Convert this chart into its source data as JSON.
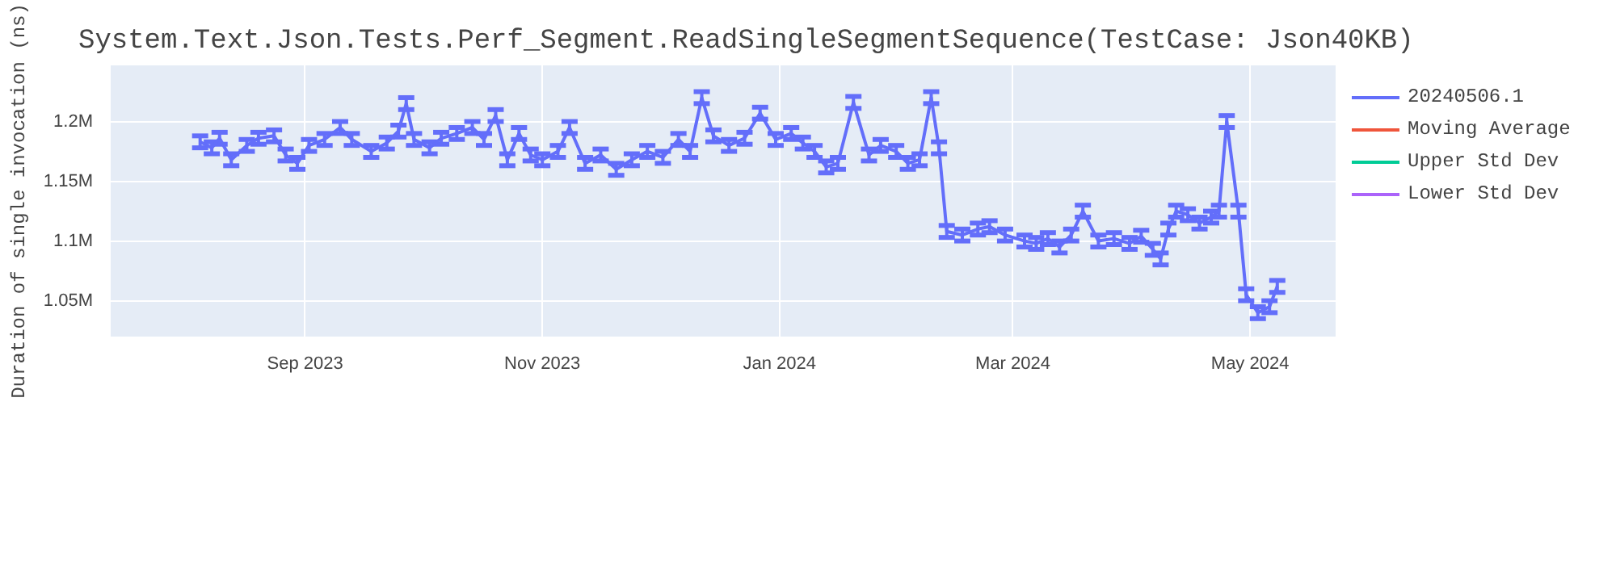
{
  "chart_data": {
    "type": "line",
    "title": "System.Text.Json.Tests.Perf_Segment.ReadSingleSegmentSequence(TestCase: Json40KB)",
    "ylabel": "Duration of single invocation (ns)",
    "x": [
      "2023-08-05",
      "2023-08-08",
      "2023-08-10",
      "2023-08-13",
      "2023-08-17",
      "2023-08-20",
      "2023-08-24",
      "2023-08-27",
      "2023-08-30",
      "2023-09-02",
      "2023-09-06",
      "2023-09-10",
      "2023-09-13",
      "2023-09-18",
      "2023-09-22",
      "2023-09-25",
      "2023-09-27",
      "2023-09-29",
      "2023-10-03",
      "2023-10-06",
      "2023-10-10",
      "2023-10-14",
      "2023-10-17",
      "2023-10-20",
      "2023-10-23",
      "2023-10-26",
      "2023-10-29",
      "2023-11-01",
      "2023-11-05",
      "2023-11-08",
      "2023-11-12",
      "2023-11-16",
      "2023-11-20",
      "2023-11-24",
      "2023-11-28",
      "2023-12-02",
      "2023-12-06",
      "2023-12-09",
      "2023-12-12",
      "2023-12-15",
      "2023-12-19",
      "2023-12-23",
      "2023-12-27",
      "2023-12-31",
      "2024-01-04",
      "2024-01-07",
      "2024-01-10",
      "2024-01-13",
      "2024-01-16",
      "2024-01-20",
      "2024-01-24",
      "2024-01-27",
      "2024-01-31",
      "2024-02-03",
      "2024-02-06",
      "2024-02-09",
      "2024-02-11",
      "2024-02-13",
      "2024-02-17",
      "2024-02-21",
      "2024-02-24",
      "2024-02-28",
      "2024-03-04",
      "2024-03-07",
      "2024-03-10",
      "2024-03-13",
      "2024-03-16",
      "2024-03-19",
      "2024-03-23",
      "2024-03-27",
      "2024-03-31",
      "2024-04-03",
      "2024-04-06",
      "2024-04-08",
      "2024-04-10",
      "2024-04-12",
      "2024-04-15",
      "2024-04-18",
      "2024-04-21",
      "2024-04-23",
      "2024-04-25",
      "2024-04-28",
      "2024-04-30",
      "2024-05-03",
      "2024-05-06",
      "2024-05-08"
    ],
    "series": [
      {
        "name": "20240506.1",
        "color": "#636efa",
        "values": [
          1183000,
          1178000,
          1186000,
          1168000,
          1180000,
          1186000,
          1188000,
          1172000,
          1165000,
          1180000,
          1185000,
          1195000,
          1185000,
          1175000,
          1182000,
          1192000,
          1215000,
          1185000,
          1178000,
          1186000,
          1190000,
          1195000,
          1185000,
          1205000,
          1168000,
          1190000,
          1172000,
          1168000,
          1175000,
          1195000,
          1165000,
          1172000,
          1160000,
          1168000,
          1175000,
          1170000,
          1185000,
          1175000,
          1220000,
          1188000,
          1180000,
          1186000,
          1207000,
          1185000,
          1190000,
          1182000,
          1175000,
          1162000,
          1165000,
          1216000,
          1172000,
          1180000,
          1175000,
          1165000,
          1168000,
          1220000,
          1178000,
          1108000,
          1105000,
          1110000,
          1112000,
          1105000,
          1100000,
          1098000,
          1102000,
          1095000,
          1105000,
          1125000,
          1100000,
          1102000,
          1098000,
          1104000,
          1093000,
          1085000,
          1110000,
          1125000,
          1122000,
          1115000,
          1120000,
          1125000,
          1200000,
          1125000,
          1055000,
          1040000,
          1045000,
          1062000
        ],
        "errors": [
          5000,
          5000,
          5000,
          5000,
          5000,
          5000,
          5000,
          5000,
          5000,
          5000,
          5000,
          5000,
          5000,
          5000,
          5000,
          5000,
          5000,
          5000,
          5000,
          5000,
          5000,
          5000,
          5000,
          5000,
          5000,
          5000,
          5000,
          5000,
          5000,
          5000,
          5000,
          5000,
          5000,
          5000,
          5000,
          5000,
          5000,
          5000,
          5000,
          5000,
          5000,
          5000,
          5000,
          5000,
          5000,
          5000,
          5000,
          5000,
          5000,
          5000,
          5000,
          5000,
          5000,
          5000,
          5000,
          5000,
          5000,
          5000,
          5000,
          5000,
          5000,
          5000,
          5000,
          5000,
          5000,
          5000,
          5000,
          5000,
          5000,
          5000,
          5000,
          5000,
          5000,
          5000,
          5000,
          5000,
          5000,
          5000,
          5000,
          5000,
          5000,
          5000,
          5000,
          5000,
          5000,
          5000
        ]
      },
      {
        "name": "Moving Average",
        "color": "#ef553b",
        "values": [
          null,
          null,
          null,
          null,
          null,
          null,
          null,
          null,
          null,
          null,
          null,
          null,
          null,
          null,
          null,
          null,
          null,
          null,
          null,
          null,
          null,
          null,
          null,
          null,
          null,
          null,
          null,
          null,
          null,
          null,
          null,
          null,
          null,
          null,
          null,
          null,
          null,
          null,
          null,
          null,
          null,
          null,
          null,
          null,
          null,
          null,
          null,
          null,
          null,
          null,
          null,
          null,
          null,
          null,
          null,
          null,
          null,
          null,
          null,
          null,
          null,
          null,
          null,
          null,
          null,
          null,
          null,
          null,
          null,
          null,
          null,
          null,
          null,
          null,
          null,
          null,
          null,
          null,
          null,
          null,
          null,
          null,
          null,
          null,
          null,
          null
        ]
      },
      {
        "name": "Upper Std Dev",
        "color": "#00cc96",
        "values": [
          null,
          null,
          null,
          null,
          null,
          null,
          null,
          null,
          null,
          null,
          null,
          null,
          null,
          null,
          null,
          null,
          null,
          null,
          null,
          null,
          null,
          null,
          null,
          null,
          null,
          null,
          null,
          null,
          null,
          null,
          null,
          null,
          null,
          null,
          null,
          null,
          null,
          null,
          null,
          null,
          null,
          null,
          null,
          null,
          null,
          null,
          null,
          null,
          null,
          null,
          null,
          null,
          null,
          null,
          null,
          null,
          null,
          null,
          null,
          null,
          null,
          null,
          null,
          null,
          null,
          null,
          null,
          null,
          null,
          null,
          null,
          null,
          null,
          null,
          null,
          null,
          null,
          null,
          null,
          null,
          null,
          null,
          null,
          null,
          null,
          null
        ]
      },
      {
        "name": "Lower Std Dev",
        "color": "#ab63fa",
        "values": [
          null,
          null,
          null,
          null,
          null,
          null,
          null,
          null,
          null,
          null,
          null,
          null,
          null,
          null,
          null,
          null,
          null,
          null,
          null,
          null,
          null,
          null,
          null,
          null,
          null,
          null,
          null,
          null,
          null,
          null,
          null,
          null,
          null,
          null,
          null,
          null,
          null,
          null,
          null,
          null,
          null,
          null,
          null,
          null,
          null,
          null,
          null,
          null,
          null,
          null,
          null,
          null,
          null,
          null,
          null,
          null,
          null,
          null,
          null,
          null,
          null,
          null,
          null,
          null,
          null,
          null,
          null,
          null,
          null,
          null,
          null,
          null,
          null,
          null,
          null,
          null,
          null,
          null,
          null,
          null,
          null,
          null,
          null,
          null,
          null,
          null
        ]
      }
    ],
    "xlim": [
      "2023-07-13",
      "2024-05-23"
    ],
    "xticks": [
      {
        "value": "2023-09-01",
        "label": "Sep 2023"
      },
      {
        "value": "2023-11-01",
        "label": "Nov 2023"
      },
      {
        "value": "2024-01-01",
        "label": "Jan 2024"
      },
      {
        "value": "2024-03-01",
        "label": "Mar 2024"
      },
      {
        "value": "2024-05-01",
        "label": "May 2024"
      }
    ],
    "ylim": [
      1020000,
      1247000
    ],
    "yticks": [
      {
        "value": 1050000,
        "label": "1.05M"
      },
      {
        "value": 1100000,
        "label": "1.1M"
      },
      {
        "value": 1150000,
        "label": "1.15M"
      },
      {
        "value": 1200000,
        "label": "1.2M"
      }
    ],
    "grid": true,
    "legend": "right",
    "line_style": "solid"
  }
}
